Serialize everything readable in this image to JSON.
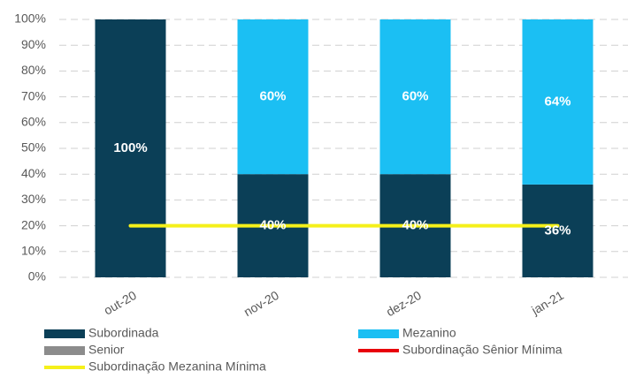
{
  "chart_data": {
    "type": "bar",
    "stacked": true,
    "categories": [
      "out-20",
      "nov-20",
      "dez-20",
      "jan-21"
    ],
    "series": [
      {
        "name": "Subordinada",
        "type": "bar",
        "color": "#0b3f57",
        "values": [
          100,
          40,
          40,
          36
        ],
        "value_labels": [
          "100%",
          "40%",
          "40%",
          "36%"
        ]
      },
      {
        "name": "Mezanino",
        "type": "bar",
        "color": "#1bbff3",
        "values": [
          0,
          60,
          60,
          64
        ],
        "value_labels": [
          null,
          "60%",
          "60%",
          "64%"
        ]
      },
      {
        "name": "Senior",
        "type": "bar",
        "color": "#8c8c8c",
        "values": [
          0,
          0,
          0,
          0
        ]
      },
      {
        "name": "Subordinação Sênior Mínima",
        "type": "line",
        "color": "#e8000b",
        "values": [
          null,
          null,
          null,
          null
        ]
      },
      {
        "name": "Subordinação Mezanina Mínima",
        "type": "line",
        "color": "#f5f01a",
        "values": [
          20,
          20,
          20,
          20
        ]
      }
    ],
    "ylim": [
      0,
      100
    ],
    "yticks": [
      {
        "value": 0,
        "label": "0%"
      },
      {
        "value": 10,
        "label": "10%"
      },
      {
        "value": 20,
        "label": "20%"
      },
      {
        "value": 30,
        "label": "30%"
      },
      {
        "value": 40,
        "label": "40%"
      },
      {
        "value": 50,
        "label": "50%"
      },
      {
        "value": 60,
        "label": "60%"
      },
      {
        "value": 70,
        "label": "70%"
      },
      {
        "value": 80,
        "label": "80%"
      },
      {
        "value": 90,
        "label": "90%"
      },
      {
        "value": 100,
        "label": "100%"
      }
    ],
    "grid": true
  }
}
